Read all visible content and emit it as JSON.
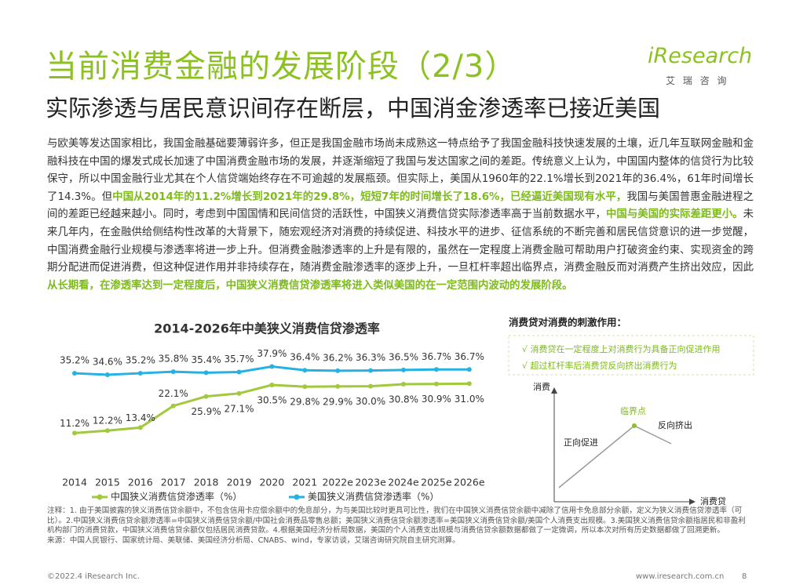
{
  "header": {
    "title": "当前消费金融的发展阶段（2/3）",
    "subtitle": "实际渗透与居民意识间存在断层，中国消金渗透率已接近美国",
    "logo": "iResearch",
    "logo_sub": "艾 瑞 咨 询"
  },
  "body": {
    "paragraph": [
      {
        "text": "与欧美等发达国家相比，我国金融基础要薄弱许多，但正是我国金融市场尚未成熟这一特点给予了我国金融科技快速发展的土壤，近几年互联网金融和金融科技在中国的爆发式成长加速了中国消费金融市场的发展，并逐渐缩短了我国与发达国家之间的差距。传统意义上认为，中国国内整体的信贷行为比较保守，所以中国金融行业尤其在个人信贷端始终存在不可逾越的发展瓶颈。但实际上，美国从1960年的22.1%增长到2021年的36.4%，61年时间增长了14.3%。但",
        "highlight": false
      },
      {
        "text": "中国从2014年的11.2%增长到2021年的29.8%，短短7年的时间增长了18.6%，已经逼近美国现有水平，",
        "highlight": true
      },
      {
        "text": "我国与美国普惠金融进程之间的差距已经越来越小。同时，考虑到中国国情和民间信贷的活跃性，中国狭义消费信贷实际渗透率高于当前数据水平，",
        "highlight": false
      },
      {
        "text": "中国与美国的实际差距更小。",
        "highlight": true
      },
      {
        "text": "未来几年内，在金融供给侧结构性改革的大背景下，随宏观经济对消费的持续促进、科技水平的进步、征信系统的不断完善和居民信贷意识的进一步觉醒，中国消费金融行业规模与渗透率将进一步上升。但消费金融渗透率的上升是有限的，虽然在一定程度上消费金融可帮助用户打破资金约束、实现资金的跨期分配进而促进消费，但这种促进作用并非持续存在，随消费金融渗透率的逐步上升，一旦杠杆率超出临界点，消费金融反而对消费产生挤出效应，因此",
        "highlight": false
      },
      {
        "text": "从长期看，在渗透率达到一定程度后，中国狭义消费信贷渗透率将进入类似美国的在一定范围内波动的发展阶段。",
        "highlight": true
      }
    ]
  },
  "chart_data": {
    "type": "line",
    "title": "2014-2026年中美狭义消费信贷渗透率",
    "categories": [
      "2014",
      "2015",
      "2016",
      "2017",
      "2018",
      "2019",
      "2020",
      "2021",
      "2022e",
      "2023e",
      "2024e",
      "2025e",
      "2026e"
    ],
    "series": [
      {
        "name": "中国狭义消费信贷渗透率（%）",
        "color": "#a2c83c",
        "values": [
          11.2,
          12.2,
          13.4,
          22.1,
          25.9,
          27.1,
          30.5,
          29.8,
          29.9,
          30.0,
          30.8,
          30.9,
          31.0
        ],
        "value_labels": [
          "11.2%",
          "12.2%",
          "13.4%",
          "22.1%",
          "25.9%",
          "27.1%",
          "30.5%",
          "29.8%",
          "29.9%",
          "30.0%",
          "30.8%",
          "30.9%",
          "31.0%"
        ]
      },
      {
        "name": "美国狭义消费信贷渗透率（%）",
        "color": "#27b1e2",
        "values": [
          35.2,
          34.6,
          35.2,
          35.8,
          35.4,
          35.7,
          37.9,
          36.4,
          36.2,
          36.3,
          36.5,
          36.7,
          36.7
        ],
        "value_labels": [
          "35.2%",
          "34.6%",
          "35.2%",
          "35.8%",
          "35.4%",
          "35.7%",
          "37.9%",
          "36.4%",
          "36.2%",
          "36.3%",
          "36.5%",
          "36.7%",
          "36.7%"
        ]
      }
    ]
  },
  "diagram": {
    "title": "消费贷对消费的刺激作用：",
    "points": [
      "√ 消费贷在一定程度上对消费行为具备正向促进作用",
      "√ 超过杠杆率后消费贷反向挤出消费行为"
    ],
    "y_axis": "消费",
    "x_axis": "消费贷",
    "peak": "临界点",
    "rise": "正向促进",
    "fall": "反向挤出"
  },
  "notes": {
    "note": "注释：1. 由于美国披露的狭义消费信贷余额中，不包含信用卡应偿余额中的免息部分，为与美国比较时更具可比性，我们在中国狭义消费信贷余额中减除了信用卡免息部分余额，定义为狭义消费信贷渗透率（可比）。2.中国狭义消费信贷余额渗透率=中国狭义消费信贷余额/中国社会消费品零售总额；美国狭义消费信贷余额渗透率=美国狭义消费信贷余额/美国个人消费支出规模。3.美国狭义消费信贷余额指居民和非盈利机构部门的消费贷款，中国狭义消费信贷余额仅包括居民消费贷款。4.根据美国经济分析局数据，美国的个人消费支出规模与消费信贷余额数据都做了一定微调，所以本次对所有历史数据都做了回溯更新。",
    "source": "来源：中国人民银行、国家统计局、美联储、美国经济分析局、CNABS、wind，专家访谈，艾瑞咨询研究院自主研究测算。"
  },
  "footer": {
    "copyright": "©2022.4 iResearch Inc.",
    "url": "www.iresearch.com.cn",
    "page": 8
  }
}
